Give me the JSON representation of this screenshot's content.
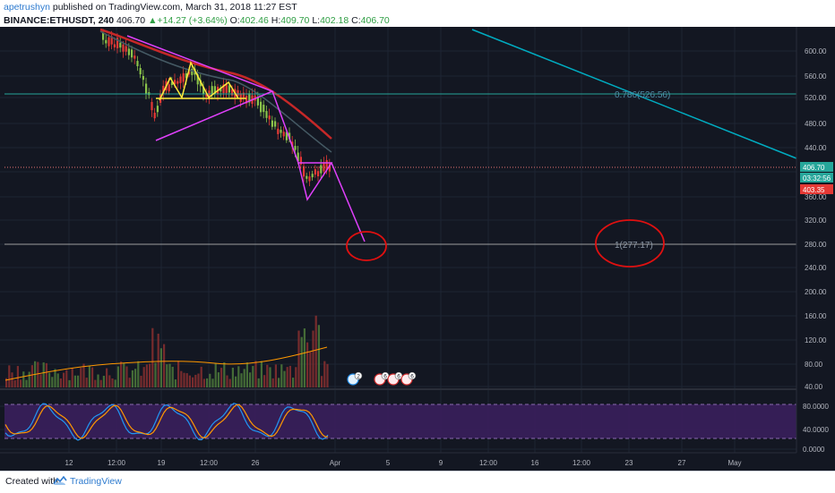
{
  "header": {
    "author": "apetrushyn",
    "published_text": "published on TradingView.com, March 31, 2018 11:27 EST",
    "symbol": "BINANCE:ETHUSDT, 240",
    "price": "406.70",
    "change": "+14.27 (+3.64%)",
    "o_label": "O:",
    "o_value": "402.46",
    "h_label": "H:",
    "h_value": "409.70",
    "l_label": "L:",
    "l_value": "402.18",
    "c_label": "C:",
    "c_value": "406.70"
  },
  "price_axis": {
    "labels": [
      "600.00",
      "560.00",
      "520.00",
      "480.00",
      "440.00",
      "406.70",
      "03:32:56",
      "403.35",
      "360.00",
      "320.00",
      "280.00",
      "240.00",
      "200.00",
      "160.00",
      "120.00",
      "80.00",
      "40.00"
    ],
    "current_price_tag": "406.70",
    "countdown_tag": "03:32:56",
    "low_tag": "403.35"
  },
  "stoch_axis": {
    "labels": [
      "80.0000",
      "40.0000",
      "0.0000"
    ]
  },
  "time_axis": {
    "labels": [
      "12",
      "12:00",
      "19",
      "12:00",
      "26",
      "Apr",
      "5",
      "9",
      "12:00",
      "16",
      "12:00",
      "23",
      "27",
      "May"
    ]
  },
  "annotations": {
    "fib_0786": "0.786(526.56)",
    "fib_1": "1(277.17)"
  },
  "event_badges": [
    "2",
    "6",
    "6",
    "6"
  ],
  "footer": {
    "created_with": "Created with",
    "brand": "TradingView"
  },
  "colors": {
    "background": "#131722",
    "grid": "#1e2433",
    "bull_candle": "#8bc34a",
    "bear_candle": "#e53935",
    "pattern_magenta": "#e040fb",
    "pattern_yellow": "#ffeb3b",
    "fib_line": "#26a69a",
    "trend_line": "#00acc1",
    "circle_red": "#e01010",
    "stoch_fill": "#3a1f5c",
    "price_tag_green": "#26a69a",
    "price_tag_red": "#e53935"
  }
}
